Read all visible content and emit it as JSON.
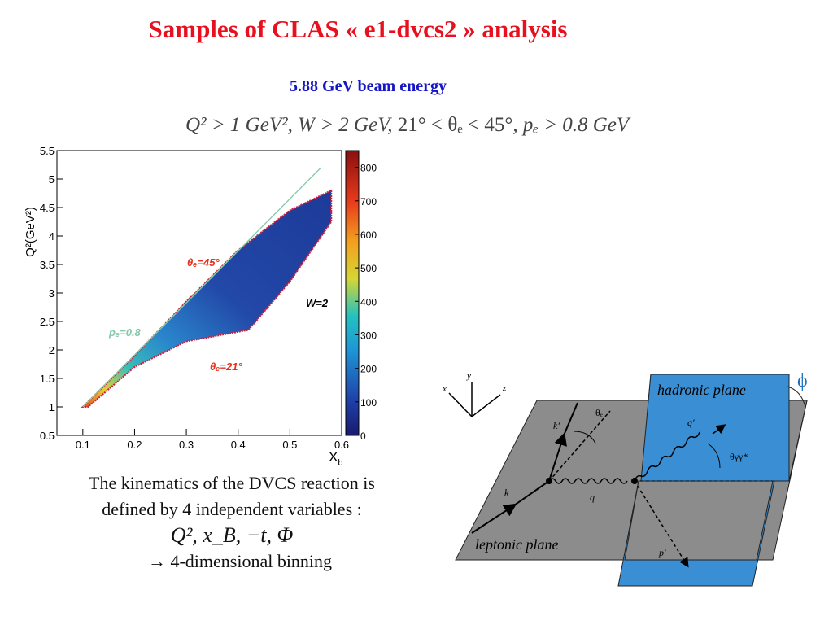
{
  "slide": {
    "title": "Samples of CLAS « e1-dvcs2 » analysis",
    "subtitle": "5.88 GeV beam energy",
    "cuts": {
      "q2": "Q² > 1 GeV²",
      "w": "W > 2 GeV",
      "theta": "21° < θₑ < 45°",
      "p": "pₑ > 0.8 GeV"
    }
  },
  "chart_data": {
    "type": "heatmap",
    "xlabel": "X",
    "xlabel_sub": "b",
    "ylabel": "Q²(GeV²)",
    "xlim": [
      0.05,
      0.6
    ],
    "ylim": [
      0.5,
      5.5
    ],
    "x_ticks": [
      "0.1",
      "0.2",
      "0.3",
      "0.4",
      "0.5",
      "0.6"
    ],
    "y_ticks": [
      "0.5",
      "1",
      "1.5",
      "2",
      "2.5",
      "3",
      "3.5",
      "4",
      "4.5",
      "5",
      "5.5"
    ],
    "colorbar_ticks": [
      "0",
      "100",
      "200",
      "300",
      "400",
      "500",
      "600",
      "700",
      "800"
    ],
    "colorbar_range": [
      0,
      850
    ],
    "annotations": {
      "theta45": "θₑ=45°",
      "theta21": "θₑ=21°",
      "pe": "pₑ=0.8",
      "w": "W=2"
    },
    "boundary_upper": [
      [
        0.1,
        1.0
      ],
      [
        0.2,
        1.9
      ],
      [
        0.3,
        2.85
      ],
      [
        0.4,
        3.75
      ],
      [
        0.5,
        4.45
      ],
      [
        0.58,
        4.8
      ]
    ],
    "boundary_lower": [
      [
        0.11,
        1.0
      ],
      [
        0.2,
        1.7
      ],
      [
        0.3,
        2.15
      ],
      [
        0.42,
        2.35
      ],
      [
        0.5,
        3.2
      ],
      [
        0.58,
        4.25
      ]
    ],
    "line_pe": [
      [
        0.1,
        1.0
      ],
      [
        0.56,
        5.2
      ]
    ]
  },
  "text": {
    "line1": "The kinematics of the DVCS reaction is",
    "line2": "defined by 4 independent variables :",
    "vars": "Q², x_B, −t, Φ",
    "binning": "→ 4-dimensional binning"
  },
  "diagram": {
    "hadronic_plane": "hadronic plane",
    "leptonic_plane": "leptonic plane",
    "phi": "ϕ",
    "theta_e": "θₑ",
    "theta_gg": "θγγ*",
    "k": "k",
    "k_prime": "k'",
    "q": "q",
    "q_prime": "q'",
    "p_prime": "p'",
    "axis_x": "x",
    "axis_y": "y",
    "axis_z": "z",
    "colors": {
      "hadronic": "#3a8fd4",
      "leptonic": "#8c8c8c"
    }
  }
}
